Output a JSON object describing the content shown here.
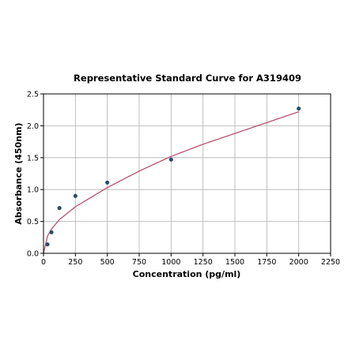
{
  "chart_data": {
    "type": "scatter",
    "title": "Representative Standard Curve for A319409",
    "xlabel": "Concentration (pg/ml)",
    "ylabel": "Absorbance (450nm)",
    "xlim": [
      0,
      2250
    ],
    "ylim": [
      0,
      2.5
    ],
    "x_ticks": [
      "0",
      "250",
      "500",
      "750",
      "1000",
      "1250",
      "1500",
      "1750",
      "2000",
      "2250"
    ],
    "y_ticks": [
      "0.0",
      "0.5",
      "1.0",
      "1.5",
      "2.0",
      "2.5"
    ],
    "grid": true,
    "series": [
      {
        "kind": "points",
        "x": [
          31.25,
          62.5,
          125,
          250,
          500,
          1000,
          2000
        ],
        "y": [
          0.14,
          0.33,
          0.71,
          0.9,
          1.11,
          1.47,
          2.27
        ]
      },
      {
        "kind": "fit-curve",
        "x": [
          0,
          31.25,
          62.5,
          125,
          250,
          500,
          750,
          1000,
          1250,
          1500,
          1750,
          2000
        ],
        "y": [
          0,
          0.27,
          0.38,
          0.53,
          0.73,
          1.03,
          1.29,
          1.52,
          1.71,
          1.88,
          2.05,
          2.22
        ]
      }
    ],
    "colors": {
      "points": "#2a4e6c",
      "curve": "#b8506e",
      "grid": "#b0b0b0",
      "axes": "#000000"
    }
  }
}
